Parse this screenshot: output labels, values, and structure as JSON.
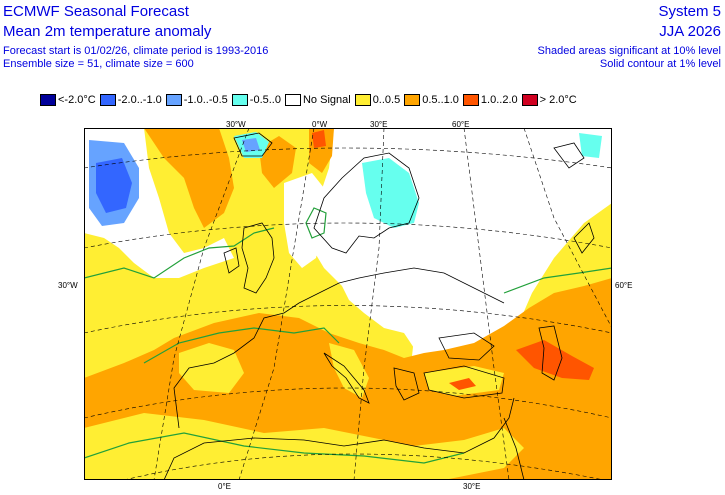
{
  "header": {
    "left_title_1": "ECMWF Seasonal Forecast",
    "left_title_2": "Mean 2m temperature anomaly",
    "left_info_1": "Forecast start is 01/02/26, climate period is 1993-2016",
    "left_info_2": "Ensemble size = 51, climate size = 600",
    "right_title_1": "System 5",
    "right_title_2": "JJA 2026",
    "right_info_1": "Shaded areas significant at 10% level",
    "right_info_2": "Solid contour at 1% level"
  },
  "legend": [
    {
      "label": "<-2.0°C",
      "color": "#00009a"
    },
    {
      "label": "-2.0..-1.0",
      "color": "#3366ff"
    },
    {
      "label": "-1.0..-0.5",
      "color": "#66a3ff"
    },
    {
      "label": "-0.5..0",
      "color": "#66ffee"
    },
    {
      "label": "No Signal",
      "color": "#ffffff"
    },
    {
      "label": "0..0.5",
      "color": "#ffee33"
    },
    {
      "label": "0.5..1.0",
      "color": "#ffa500"
    },
    {
      "label": "1.0..2.0",
      "color": "#ff5500"
    },
    {
      "label": "> 2.0°C",
      "color": "#d00020"
    }
  ],
  "map": {
    "labels": {
      "top_30w": "30°W",
      "top_0w": "0°W",
      "top_30e": "30°E",
      "top_60e": "60°E",
      "left_30w": "30°W",
      "right_60e": "60°E",
      "bottom_0e": "0°E",
      "bottom_30e": "30°E"
    }
  }
}
